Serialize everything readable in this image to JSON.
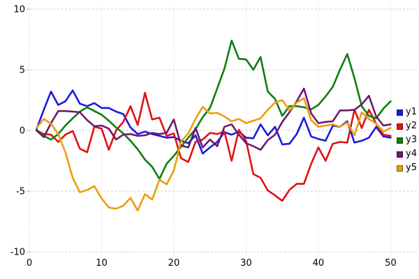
{
  "chart_data": {
    "type": "line",
    "title": "",
    "xlabel": "",
    "ylabel": "",
    "xlim": [
      0,
      51.8
    ],
    "ylim": [
      -10,
      10
    ],
    "x_ticks": [
      0,
      10,
      20,
      30,
      40,
      50
    ],
    "y_ticks": [
      -10,
      -5,
      0,
      5,
      10
    ],
    "grid": true,
    "legend_position": "right",
    "x": [
      1,
      2,
      3,
      4,
      5,
      6,
      7,
      8,
      9,
      10,
      11,
      12,
      13,
      14,
      15,
      16,
      17,
      18,
      19,
      20,
      21,
      22,
      23,
      24,
      25,
      26,
      27,
      28,
      29,
      30,
      31,
      32,
      33,
      34,
      35,
      36,
      37,
      38,
      39,
      40,
      41,
      42,
      43,
      44,
      45,
      46,
      47,
      48,
      49,
      50
    ],
    "series": [
      {
        "name": "y1",
        "color": "#1b1bdc",
        "values": [
          0.1,
          1.7,
          3.2,
          2.1,
          2.4,
          3.3,
          2.2,
          2.0,
          2.25,
          1.85,
          1.85,
          1.55,
          1.35,
          0.25,
          -0.3,
          -0.1,
          -0.3,
          -0.45,
          -0.6,
          -0.55,
          -0.85,
          -1.05,
          -0.4,
          -1.9,
          -1.4,
          -0.95,
          -0.15,
          -0.35,
          -0.1,
          -0.6,
          -0.65,
          0.5,
          -0.4,
          0.3,
          -1.15,
          -1.1,
          -0.3,
          1.05,
          -0.5,
          -0.7,
          -0.85,
          0.4,
          0.3,
          0.75,
          -1.0,
          -0.85,
          -0.6,
          0.3,
          -0.5,
          -0.6
        ]
      },
      {
        "name": "y2",
        "color": "#e01111",
        "values": [
          0.0,
          -0.3,
          -0.35,
          -0.95,
          -0.35,
          -0.05,
          -1.5,
          -1.8,
          0.3,
          0.15,
          -1.6,
          0.0,
          0.7,
          2.0,
          0.45,
          3.1,
          0.9,
          1.05,
          -0.45,
          -0.25,
          -2.3,
          -2.6,
          -0.95,
          -0.75,
          -0.2,
          -0.3,
          -0.1,
          -2.5,
          0.05,
          -0.85,
          -3.6,
          -3.9,
          -4.95,
          -5.35,
          -5.8,
          -4.9,
          -4.4,
          -4.4,
          -2.75,
          -1.4,
          -2.5,
          -1.1,
          -0.95,
          -1.0,
          1.7,
          0.2,
          1.7,
          0.55,
          -0.35,
          -0.45
        ]
      },
      {
        "name": "y3",
        "color": "#107d10",
        "values": [
          0.05,
          -0.45,
          -0.75,
          -0.3,
          0.4,
          1.0,
          1.55,
          1.9,
          1.6,
          1.3,
          0.8,
          0.25,
          -0.25,
          -0.85,
          -1.55,
          -2.4,
          -3.0,
          -4.0,
          -2.75,
          -2.1,
          -1.35,
          -0.6,
          0.1,
          1.1,
          1.85,
          3.45,
          5.1,
          7.4,
          5.9,
          5.85,
          5.0,
          6.05,
          3.2,
          2.6,
          1.2,
          2.0,
          2.0,
          1.9,
          1.75,
          2.1,
          2.8,
          3.6,
          5.0,
          6.3,
          4.3,
          2.0,
          1.2,
          1.0,
          1.8,
          2.4
        ]
      },
      {
        "name": "y4",
        "color": "#6e196e",
        "values": [
          0.0,
          -0.55,
          0.6,
          1.6,
          1.6,
          1.55,
          1.5,
          0.85,
          0.35,
          0.4,
          0.15,
          -0.75,
          -0.35,
          -0.3,
          -0.45,
          -0.4,
          -0.2,
          -0.3,
          -0.2,
          0.9,
          -1.25,
          -1.4,
          0.2,
          -1.4,
          -0.75,
          -1.3,
          0.3,
          0.5,
          -0.35,
          -1.05,
          -1.3,
          -1.6,
          -0.8,
          -0.35,
          0.7,
          1.5,
          2.4,
          3.45,
          1.4,
          0.6,
          0.7,
          0.75,
          1.65,
          1.65,
          1.7,
          2.15,
          2.85,
          1.15,
          0.4,
          0.5
        ]
      },
      {
        "name": "y5",
        "color": "#ec9d0f",
        "values": [
          0.2,
          0.95,
          0.55,
          -0.3,
          -1.8,
          -3.9,
          -5.1,
          -4.9,
          -4.6,
          -5.6,
          -6.35,
          -6.45,
          -6.2,
          -5.55,
          -6.6,
          -5.25,
          -5.7,
          -4.05,
          -4.45,
          -3.3,
          -0.9,
          -0.25,
          0.95,
          1.95,
          1.4,
          1.45,
          1.15,
          0.75,
          0.95,
          0.6,
          0.8,
          1.0,
          1.7,
          2.3,
          2.5,
          1.65,
          2.3,
          2.65,
          0.85,
          0.3,
          0.4,
          0.5,
          0.3,
          0.65,
          -0.4,
          1.5,
          0.95,
          0.55,
          -0.1,
          0.2
        ]
      }
    ]
  },
  "legend": {
    "items": [
      {
        "label": "y1"
      },
      {
        "label": "y2"
      },
      {
        "label": "y3"
      },
      {
        "label": "y4"
      },
      {
        "label": "y5"
      }
    ]
  }
}
